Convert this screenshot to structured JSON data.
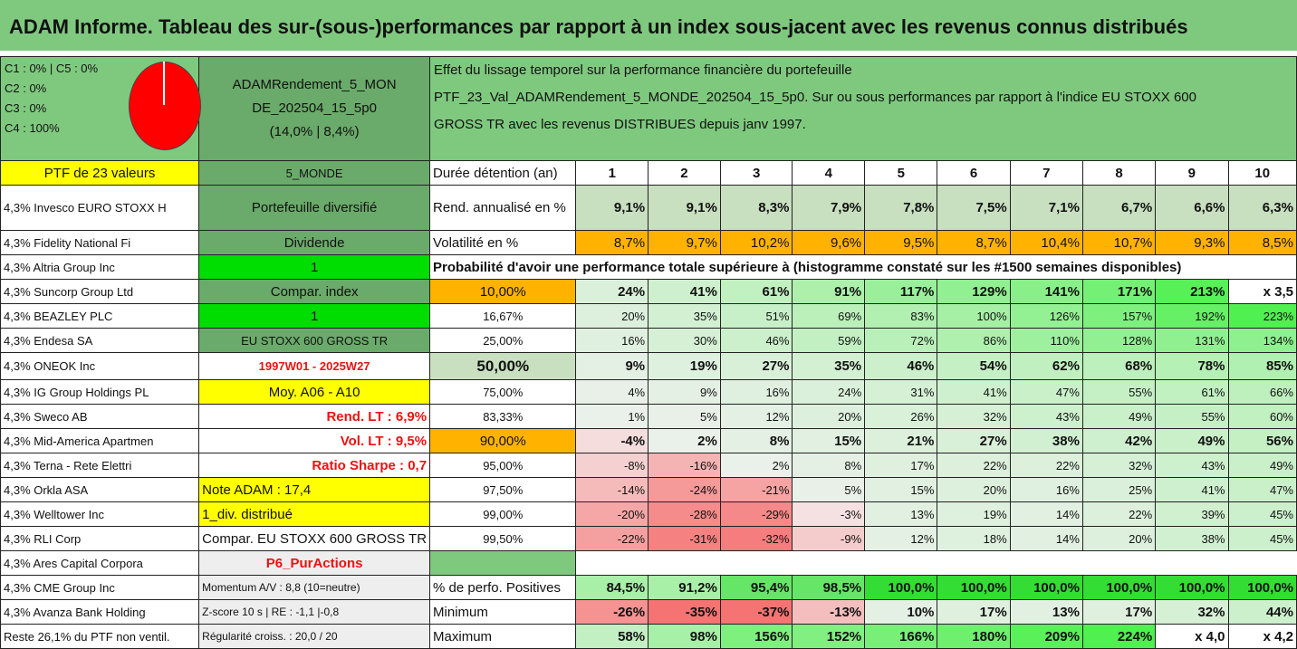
{
  "title": "ADAM Informe. Tableau des sur-(sous-)performances par rapport à un index sous-jacent avec les revenus connus distribués",
  "header": {
    "c_lines": [
      "C1 : 0% | C5 : 0%",
      "C2 : 0%",
      "C3 : 0%",
      "C4 : 100%"
    ],
    "fund_name_l1": "ADAMRendement_5_MON",
    "fund_name_l2": "DE_202504_15_5p0",
    "fund_perf": "(14,0% | 8,4%)",
    "desc_l1": "Effet du lissage temporel sur la performance financière du portefeuille",
    "desc_l2": "PTF_23_Val_ADAMRendement_5_MONDE_202504_15_5p0. Sur ou sous performances par rapport à l'indice EU STOXX 600",
    "desc_l3": "GROSS TR avec les revenus DISTRIBUES depuis janv 1997."
  },
  "colors": {
    "pie": "#ff0000",
    "accent_green": "#7fc97f"
  },
  "holdings": [
    "PTF de 23 valeurs",
    "4,3% Invesco EURO STOXX H",
    "4,3% Fidelity National Fi",
    "4,3% Altria Group Inc",
    "4,3% Suncorp Group Ltd",
    "4,3% BEAZLEY PLC",
    "4,3% Endesa SA",
    "4,3% ONEOK Inc",
    "4,3% IG Group Holdings PL",
    "4,3% Sweco AB",
    "4,3% Mid-America Apartmen",
    "4,3% Terna - Rete Elettri",
    "4,3% Orkla ASA",
    "4,3% Welltower Inc",
    "4,3% RLI Corp",
    "4,3% Ares Capital Corpora",
    "4,3% CME Group Inc",
    "4,3% Avanza Bank Holding",
    "Reste 26,1% du PTF non ventil."
  ],
  "params": [
    "5_MONDE",
    "Portefeuille diversifié",
    "Dividende",
    "1",
    "Compar. index",
    "1",
    "EU STOXX 600 GROSS TR",
    "1997W01 - 2025W27",
    "Moy. A06 - A10",
    "Rend. LT : 6,9%",
    "Vol. LT : 9,5%",
    "Ratio Sharpe : 0,7",
    "Note ADAM : 17,4",
    "1_div. distribué",
    "Compar. EU STOXX 600 GROSS TR",
    "P6_PurActions",
    "Momentum A/V : 8,8 (10=neutre)",
    "Z-score 10 s | RE : -1,1 |-0,8",
    "Régularité croiss. : 20,0 / 20"
  ],
  "stats": {
    "duration_label": "Durée détention (an)",
    "years": [
      "1",
      "2",
      "3",
      "4",
      "5",
      "6",
      "7",
      "8",
      "9",
      "10"
    ],
    "rend_label": "Rend. annualisé en %",
    "rend": [
      "9,1%",
      "9,1%",
      "8,3%",
      "7,9%",
      "7,8%",
      "7,5%",
      "7,1%",
      "6,7%",
      "6,6%",
      "6,3%"
    ],
    "vol_label": "Volatilité en %",
    "vol": [
      "8,7%",
      "9,7%",
      "10,2%",
      "9,6%",
      "9,5%",
      "8,7%",
      "10,4%",
      "10,7%",
      "9,3%",
      "8,5%"
    ],
    "proba_label": "Probabilité d'avoir une performance totale supérieure à (histogramme constaté sur les #1500 semaines disponibles)"
  },
  "proba": [
    {
      "p": "10,00%",
      "v": [
        "24%",
        "41%",
        "61%",
        "91%",
        "117%",
        "129%",
        "141%",
        "171%",
        "213%",
        "x 3,5"
      ]
    },
    {
      "p": "16,67%",
      "v": [
        "20%",
        "35%",
        "51%",
        "69%",
        "83%",
        "100%",
        "126%",
        "157%",
        "192%",
        "223%"
      ]
    },
    {
      "p": "25,00%",
      "v": [
        "16%",
        "30%",
        "46%",
        "59%",
        "72%",
        "86%",
        "110%",
        "128%",
        "131%",
        "134%"
      ]
    },
    {
      "p": "50,00%",
      "v": [
        "9%",
        "19%",
        "27%",
        "35%",
        "46%",
        "54%",
        "62%",
        "68%",
        "78%",
        "85%"
      ]
    },
    {
      "p": "75,00%",
      "v": [
        "4%",
        "9%",
        "16%",
        "24%",
        "31%",
        "41%",
        "47%",
        "55%",
        "61%",
        "66%"
      ]
    },
    {
      "p": "83,33%",
      "v": [
        "1%",
        "5%",
        "12%",
        "20%",
        "26%",
        "32%",
        "43%",
        "49%",
        "55%",
        "60%"
      ]
    },
    {
      "p": "90,00%",
      "v": [
        "-4%",
        "2%",
        "8%",
        "15%",
        "21%",
        "27%",
        "38%",
        "42%",
        "49%",
        "56%"
      ]
    },
    {
      "p": "95,00%",
      "v": [
        "-8%",
        "-16%",
        "2%",
        "8%",
        "17%",
        "22%",
        "22%",
        "32%",
        "43%",
        "49%"
      ]
    },
    {
      "p": "97,50%",
      "v": [
        "-14%",
        "-24%",
        "-21%",
        "5%",
        "15%",
        "20%",
        "16%",
        "25%",
        "41%",
        "47%"
      ]
    },
    {
      "p": "99,00%",
      "v": [
        "-20%",
        "-28%",
        "-29%",
        "-3%",
        "13%",
        "19%",
        "14%",
        "22%",
        "39%",
        "45%"
      ]
    },
    {
      "p": "99,50%",
      "v": [
        "-22%",
        "-31%",
        "-32%",
        "-9%",
        "12%",
        "18%",
        "14%",
        "20%",
        "38%",
        "45%"
      ]
    }
  ],
  "summary": {
    "pos_label": "% de perfo. Positives",
    "pos": [
      "84,5%",
      "91,2%",
      "95,4%",
      "98,5%",
      "100,0%",
      "100,0%",
      "100,0%",
      "100,0%",
      "100,0%",
      "100,0%"
    ],
    "min_label": "Minimum",
    "min": [
      "-26%",
      "-35%",
      "-37%",
      "-13%",
      "10%",
      "17%",
      "13%",
      "17%",
      "32%",
      "44%"
    ],
    "max_label": "Maximum",
    "max": [
      "58%",
      "98%",
      "156%",
      "152%",
      "166%",
      "180%",
      "209%",
      "224%",
      "x 4,0",
      "x 4,2"
    ]
  }
}
